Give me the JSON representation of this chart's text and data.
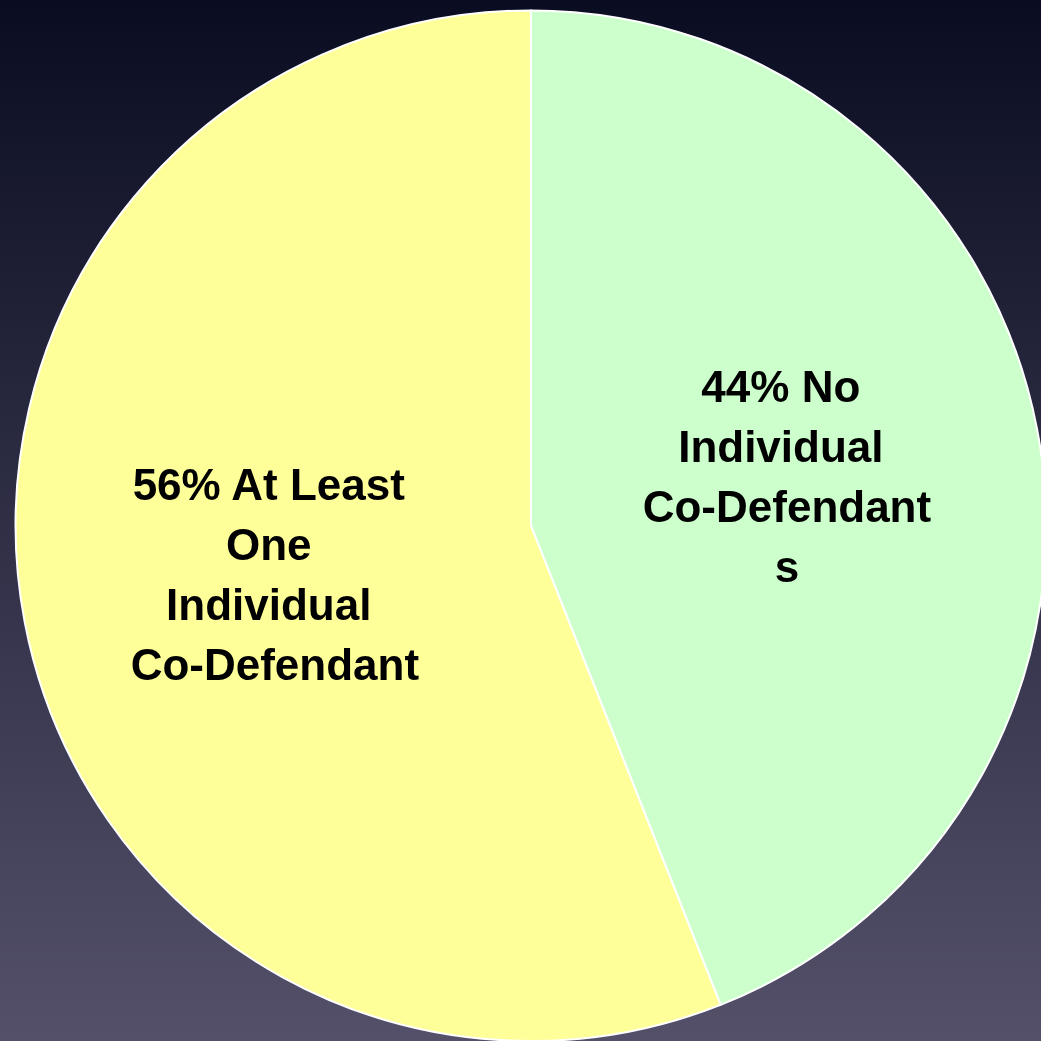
{
  "chart_data": {
    "type": "pie",
    "categories": [
      "44% No Individual Co-Defendants",
      "56% At Least One Individual Co-Defendant"
    ],
    "values": [
      44,
      56
    ],
    "colors": [
      "#ccffcc",
      "#ffff99"
    ]
  }
}
